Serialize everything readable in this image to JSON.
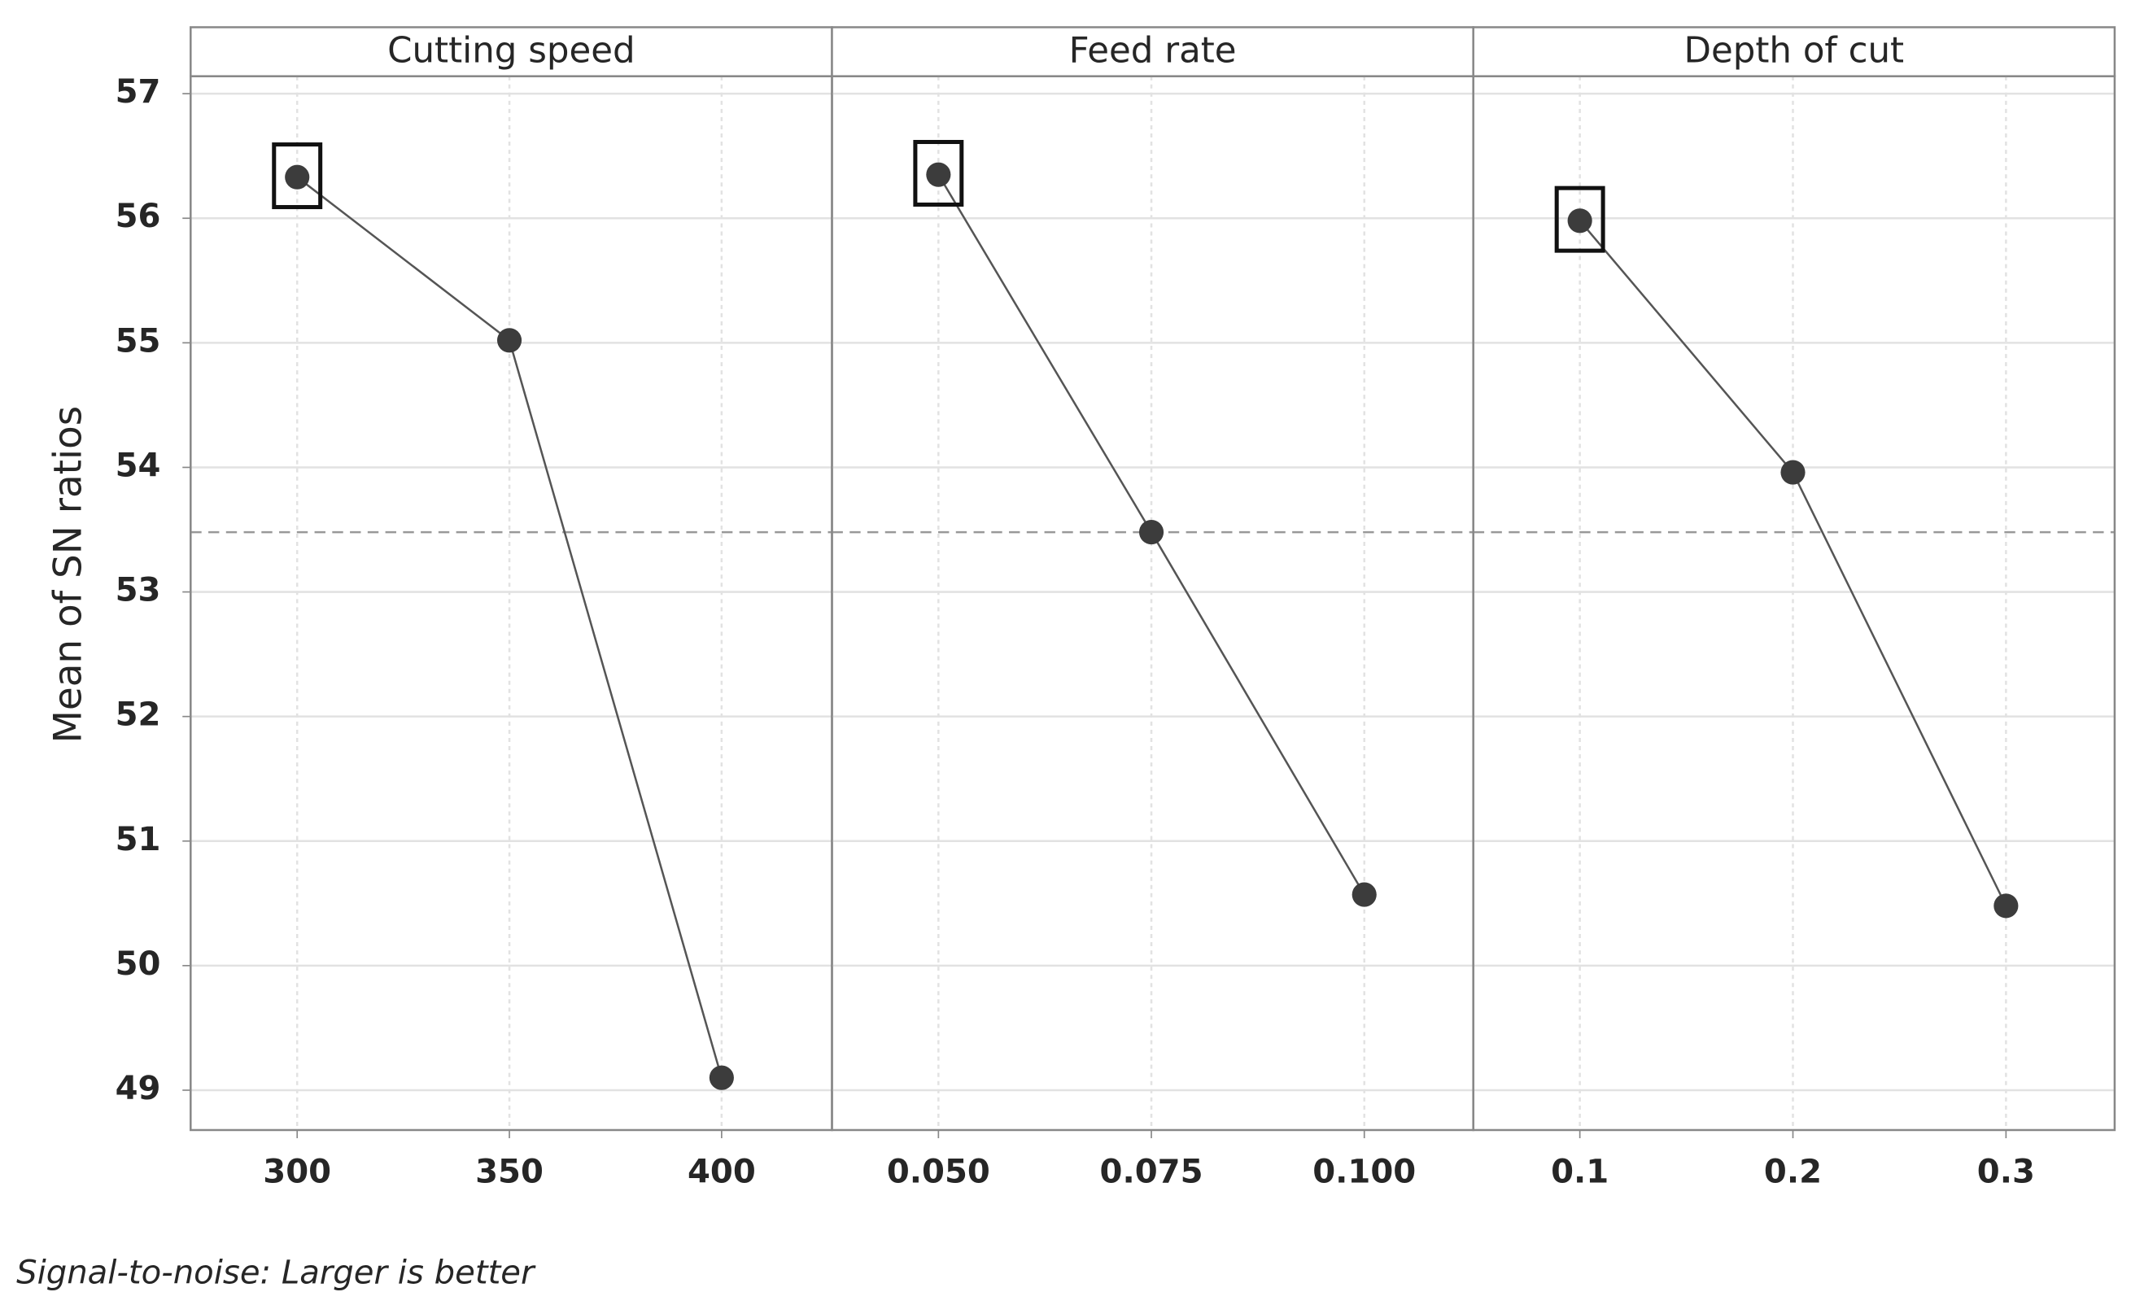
{
  "chart_data": {
    "type": "line",
    "ylabel": "Mean of SN ratios",
    "footnote": "Signal-to-noise: Larger is better",
    "ylim": [
      48.68,
      57.14
    ],
    "yticks": [
      49,
      50,
      51,
      52,
      53,
      54,
      55,
      56,
      57
    ],
    "reference_line": 53.48,
    "grid": true,
    "color": "#3c3c3c",
    "panels": [
      {
        "title": "Cutting speed",
        "x": [
          300,
          350,
          400
        ],
        "values": [
          56.33,
          55.02,
          49.1
        ],
        "xlim": [
          274.9,
          426
        ],
        "xticks": [
          300,
          350,
          400
        ],
        "highlight_index": 0
      },
      {
        "title": "Feed rate",
        "x": [
          0.05,
          0.075,
          0.1
        ],
        "values": [
          56.35,
          53.48,
          50.57
        ],
        "xlim": [
          0.0375,
          0.1128
        ],
        "xticks": [
          {
            "value": 0.05,
            "label": "0.050"
          },
          0.075,
          {
            "value": 0.1,
            "label": "0.100"
          }
        ],
        "highlight_index": 0
      },
      {
        "title": "Depth of cut",
        "x": [
          0.1,
          0.2,
          0.3
        ],
        "values": [
          55.98,
          53.96,
          50.48
        ],
        "xlim": [
          0.05,
          0.351
        ],
        "xticks": [
          0.1,
          0.2,
          0.3
        ],
        "highlight_index": 0
      }
    ]
  }
}
